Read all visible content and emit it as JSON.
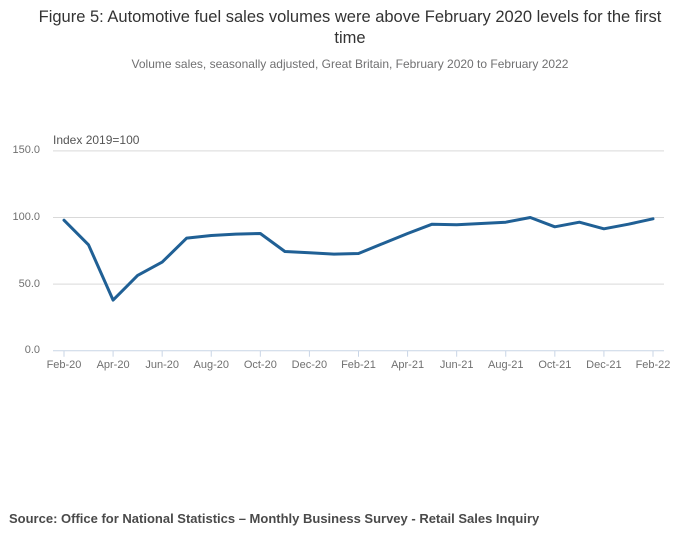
{
  "header": {
    "title": "Figure 5: Automotive fuel sales volumes were above February 2020 levels for the first time",
    "subtitle": "Volume sales, seasonally adjusted, Great Britain, February 2020 to February 2022"
  },
  "chart_data": {
    "type": "line",
    "title": "Figure 5: Automotive fuel sales volumes were above February 2020 levels for the first time",
    "subtitle": "Volume sales, seasonally adjusted, Great Britain, February 2020 to February 2022",
    "unit_label": "Index 2019=100",
    "x": [
      "Feb-20",
      "Mar-20",
      "Apr-20",
      "May-20",
      "Jun-20",
      "Jul-20",
      "Aug-20",
      "Sep-20",
      "Oct-20",
      "Nov-20",
      "Dec-20",
      "Jan-21",
      "Feb-21",
      "Mar-21",
      "Apr-21",
      "May-21",
      "Jun-21",
      "Jul-21",
      "Aug-21",
      "Sep-21",
      "Oct-21",
      "Nov-21",
      "Dec-21",
      "Jan-22",
      "Feb-22"
    ],
    "series": [
      {
        "name": "Automotive fuel volume sales, seasonally adjusted",
        "values": [
          98,
          79.5,
          38,
          56.5,
          66.5,
          84.5,
          86.5,
          87.5,
          88,
          74.5,
          73.5,
          72.5,
          73,
          80.5,
          88,
          95,
          94.5,
          95.5,
          96.5,
          100,
          93,
          96.5,
          91.5,
          95,
          99
        ]
      }
    ],
    "x_tick_labels": [
      "Feb-20",
      "Apr-20",
      "Jun-20",
      "Aug-20",
      "Oct-20",
      "Dec-20",
      "Feb-21",
      "Apr-21",
      "Jun-21",
      "Aug-21",
      "Oct-21",
      "Dec-21",
      "Feb-22"
    ],
    "y_ticks": [
      0,
      50,
      100,
      150
    ],
    "y_tick_labels": [
      "0.0",
      "50.0",
      "100.0",
      "150.0"
    ],
    "ylim": [
      0,
      150
    ],
    "grid": "horizontal",
    "legend": "none",
    "colors": {
      "line": "#206095",
      "gridline": "#d9d9d9",
      "axis": "#c9d5e6",
      "tick_text": "#707070"
    }
  },
  "source": {
    "text": "Source: Office for National Statistics – Monthly Business Survey - Retail Sales Inquiry"
  }
}
